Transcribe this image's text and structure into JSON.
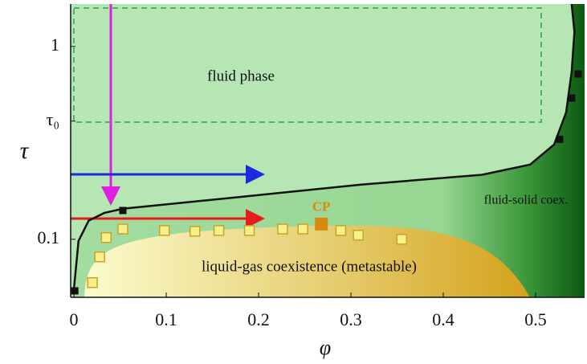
{
  "chart_data": {
    "type": "phase",
    "xlabel": "φ",
    "ylabel": "τ",
    "xlim": [
      -0.0035,
      0.553
    ],
    "ylim": [
      0.05,
      1.66
    ],
    "ylog": true,
    "xticks": [
      0,
      0.1,
      0.2,
      0.3,
      0.4,
      0.5
    ],
    "yticks": [
      0.1,
      {
        "value": 0.41,
        "label": "τ₀"
      },
      1
    ],
    "boundary_x": [
      0,
      0.005,
      0.016,
      0.033,
      0.053,
      0.181,
      0.311,
      0.442,
      0.494,
      0.52,
      0.533,
      0.539,
      0.542,
      0.539
    ],
    "boundary_y": [
      0.055,
      0.098,
      0.125,
      0.137,
      0.144,
      0.166,
      0.192,
      0.216,
      0.244,
      0.31,
      0.455,
      0.74,
      1.19,
      1.66
    ],
    "boundary_color": "#111111",
    "solid_markers_x": [
      0.001,
      0.053,
      0.526,
      0.539,
      0.546
    ],
    "solid_markers_y": [
      0.054,
      0.141,
      0.33,
      0.54,
      0.72
    ],
    "coexistence_x": [
      0.02,
      0.028,
      0.035,
      0.053,
      0.098,
      0.131,
      0.157,
      0.19,
      0.226,
      0.248,
      0.289,
      0.308,
      0.355
    ],
    "coexistence_y": [
      0.0596,
      0.081,
      0.102,
      0.113,
      0.111,
      0.11,
      0.111,
      0.111,
      0.113,
      0.113,
      0.111,
      0.105,
      0.1
    ],
    "coexistence_color": "#f5f08a",
    "cp_label": "CP",
    "cp_x": 0.268,
    "cp_y": 0.12,
    "cp_color": "#d98a0c",
    "annotations": [
      "fluid phase",
      "liquid-gas coexistence (metastable)",
      "fluid-solid coex."
    ]
  }
}
